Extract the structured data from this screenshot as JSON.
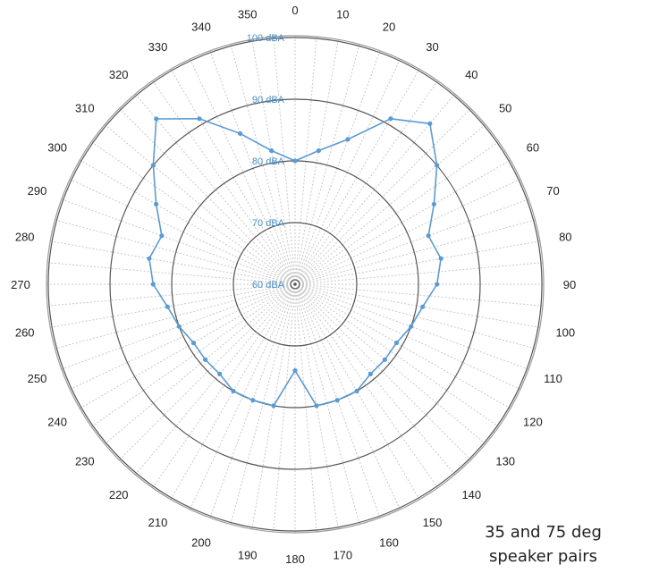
{
  "chart_data": {
    "type": "radar",
    "angle_labels": [
      "0",
      "10",
      "20",
      "30",
      "40",
      "50",
      "60",
      "70",
      "80",
      "90",
      "100",
      "110",
      "120",
      "130",
      "140",
      "150",
      "160",
      "170",
      "180",
      "190",
      "200",
      "210",
      "220",
      "230",
      "240",
      "250",
      "260",
      "270",
      "280",
      "290",
      "300",
      "310",
      "320",
      "330",
      "340",
      "350"
    ],
    "angles_deg": [
      0,
      10,
      20,
      30,
      40,
      50,
      60,
      70,
      80,
      90,
      100,
      110,
      120,
      130,
      140,
      150,
      160,
      170,
      180,
      190,
      200,
      210,
      220,
      230,
      240,
      250,
      260,
      270,
      280,
      290,
      300,
      310,
      320,
      330,
      340,
      350
    ],
    "radial_ticks": [
      60,
      70,
      80,
      90,
      100
    ],
    "radial_tick_labels": [
      "60 dBA",
      "70 dBA",
      "80 dBA",
      "90 dBA",
      "100 dBA"
    ],
    "rlim": [
      60,
      100
    ],
    "series": [
      {
        "values": [
          80,
          82,
          85,
          91,
          94,
          90,
          86,
          83,
          84,
          83,
          81,
          80,
          79,
          79,
          79,
          80,
          80,
          80,
          74,
          80,
          80,
          80,
          79,
          79,
          79,
          80,
          81,
          83,
          84,
          83,
          86,
          90,
          95,
          91,
          86,
          82
        ]
      }
    ],
    "grid": true
  },
  "colors": {
    "series_line": "#5b9bd5",
    "radial_label": "#4a8fc8",
    "grid_circle": "#555555",
    "grid_spoke": "#c8c8c8",
    "outer_circle": "#9a9a9a"
  },
  "caption": {
    "line1": "35 and 75 deg",
    "line2": "speaker pairs"
  }
}
